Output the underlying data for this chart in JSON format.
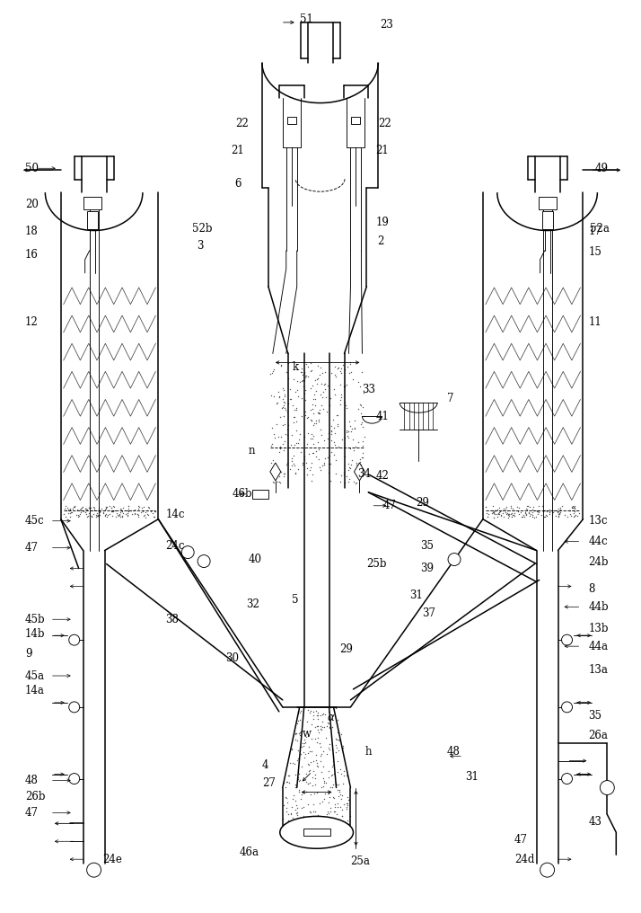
{
  "bg_color": "#ffffff",
  "line_color": "#000000",
  "fs": 8.5,
  "lw": 1.1,
  "tlw": 0.65,
  "fig_width": 6.97,
  "fig_height": 10.0,
  "dpi": 100
}
